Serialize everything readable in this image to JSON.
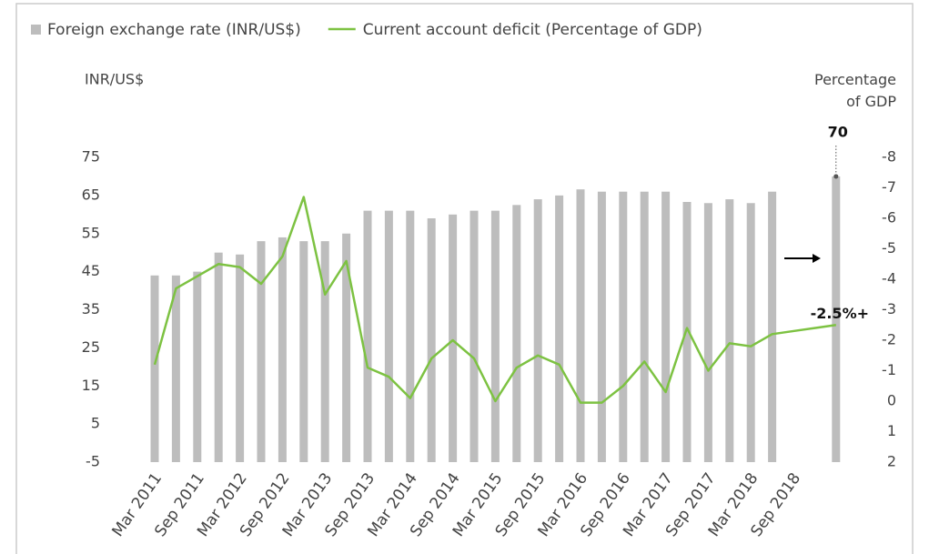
{
  "chart_data": {
    "type": "bar-line",
    "categories": [
      "Mar 2011",
      null,
      "Sep 2011",
      null,
      "Mar 2012",
      null,
      "Sep 2012",
      null,
      "Mar 2013",
      null,
      "Sep 2013",
      null,
      "Mar 2014",
      null,
      "Sep 2014",
      null,
      "Mar 2015",
      null,
      "Sep 2015",
      null,
      "Mar 2016",
      null,
      "Sep 2016",
      null,
      "Mar 2017",
      null,
      "Sep 2017",
      null,
      "Mar 2018",
      null,
      "Sep 2018",
      null,
      null
    ],
    "series": [
      {
        "name": "Foreign exchange rate (INR/US$)",
        "color": "#bdbdbd",
        "kind": "bar",
        "values": [
          44,
          44,
          45,
          50,
          49.5,
          53,
          54,
          53,
          53,
          55,
          61,
          61,
          61,
          59,
          60,
          61,
          61,
          62.5,
          64,
          65,
          66.6,
          66,
          66,
          66,
          66,
          63.3,
          63,
          64,
          63,
          66,
          null,
          null,
          70
        ],
        "value_labels": [
          null,
          null,
          null,
          null,
          null,
          null,
          null,
          null,
          null,
          null,
          null,
          null,
          null,
          null,
          null,
          null,
          null,
          null,
          null,
          null,
          null,
          null,
          null,
          null,
          null,
          null,
          null,
          null,
          null,
          null,
          null,
          null,
          "70"
        ]
      },
      {
        "name": "Current account deficit (Percentage of GDP)",
        "color": "#7dc242",
        "kind": "line",
        "axis": "y2",
        "values": [
          -1.2,
          -3.7,
          -4.1,
          -4.5,
          -4.4,
          -3.85,
          -4.75,
          -6.7,
          -3.5,
          -4.6,
          -1.1,
          -0.8,
          -0.1,
          -1.4,
          -2.0,
          -1.4,
          0,
          -1.1,
          -1.5,
          -1.2,
          0.05,
          0.05,
          -0.5,
          -1.3,
          -0.3,
          -2.4,
          -1.0,
          -1.9,
          -1.8,
          -2.2,
          -2.3,
          -2.4,
          -2.5
        ],
        "value_labels": [
          null,
          null,
          null,
          null,
          null,
          null,
          null,
          null,
          null,
          null,
          null,
          null,
          null,
          null,
          null,
          null,
          null,
          null,
          null,
          null,
          null,
          null,
          null,
          null,
          null,
          null,
          null,
          null,
          null,
          null,
          null,
          null,
          "-2.5%+"
        ]
      }
    ],
    "ylabel": "INR/US$",
    "y2label": "Percentage of GDP",
    "ylim": [
      -5,
      75
    ],
    "yticks": [
      -5,
      5,
      15,
      25,
      35,
      45,
      55,
      65,
      75
    ],
    "y2lim": [
      2,
      -8
    ],
    "y2ticks": [
      2,
      1,
      0,
      -1,
      -2,
      -3,
      -4,
      -5,
      -6,
      -7,
      -8
    ]
  }
}
